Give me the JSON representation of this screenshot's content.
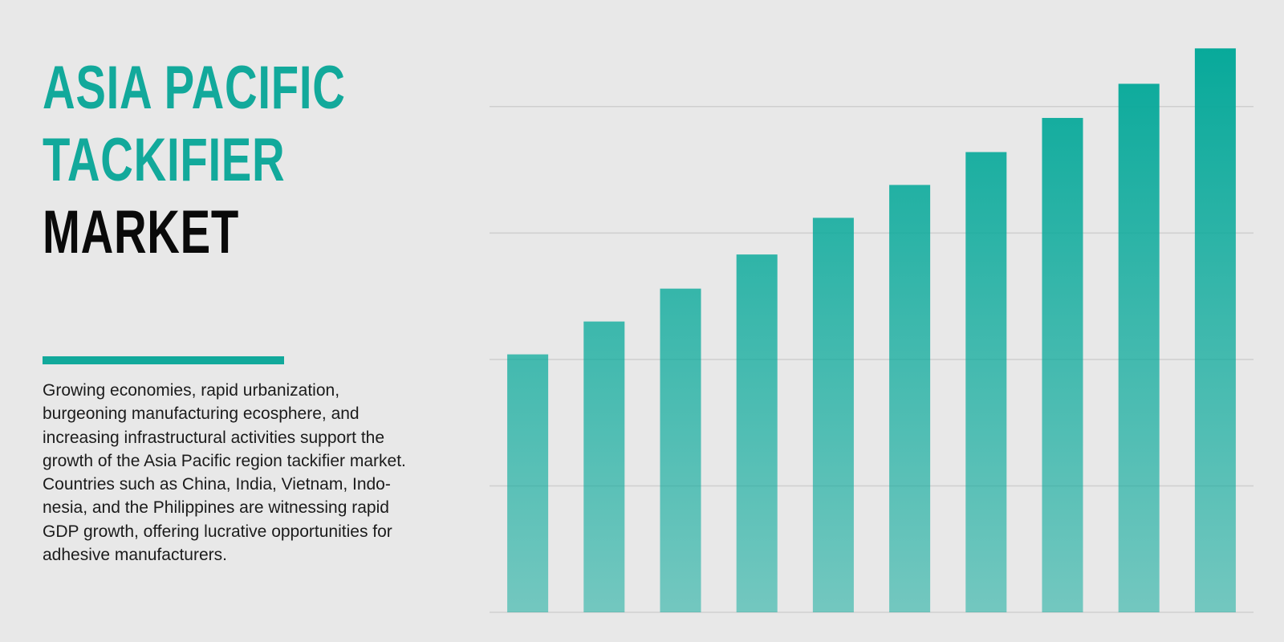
{
  "title": {
    "lines": [
      "ASIA PACIFIC",
      "TACKIFIER",
      "MARKET"
    ]
  },
  "description": {
    "lines": [
      "Growing economies, rapid urbanization,",
      "burgeoning manufacturing ecosphere, and",
      "increasing infrastructural activities support the",
      "growth of the Asia Pacific region tackifier market.",
      "Countries such as China, India, Vietnam, Indo-",
      "nesia, and the Philippines are witnessing rapid",
      "GDP growth, offering lucrative opportunities for",
      "adhesive manufacturers."
    ]
  },
  "chart_data": {
    "type": "bar",
    "categories": [
      null,
      null,
      null,
      null,
      null,
      null,
      null,
      null,
      null,
      null
    ],
    "values": [
      2.04,
      2.3,
      2.56,
      2.83,
      3.12,
      3.38,
      3.64,
      3.91,
      4.18,
      4.46
    ],
    "color": "#07a99a",
    "ylim": [
      0,
      4.5
    ],
    "yticks": [
      0,
      1,
      2,
      3,
      4
    ],
    "grid": true
  }
}
